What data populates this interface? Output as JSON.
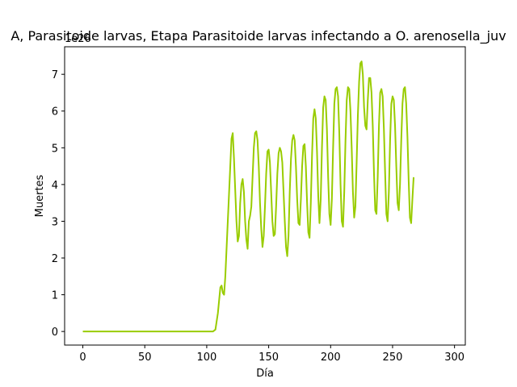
{
  "chart_data": {
    "type": "line",
    "title": "A, Parasitoide larvas, Etapa Parasitoide larvas infectando a O. arenosella_juv",
    "xlabel": "Día",
    "ylabel": "Muertes",
    "y_offset_label": "1e26",
    "xlim": [
      -14.7,
      308.7
    ],
    "ylim": [
      -0.37,
      7.75
    ],
    "x_ticks": [
      0,
      50,
      100,
      150,
      200,
      250,
      300
    ],
    "y_ticks": [
      0,
      1,
      2,
      3,
      4,
      5,
      6,
      7
    ],
    "x_tick_labels": [
      "0",
      "50",
      "100",
      "150",
      "200",
      "250",
      "300"
    ],
    "y_tick_labels": [
      "0",
      "1",
      "2",
      "3",
      "4",
      "5",
      "6",
      "7"
    ],
    "grid": false,
    "legend": "none",
    "series": [
      {
        "color": "#99cc00",
        "points": [
          [
            0,
            0
          ],
          [
            50,
            0
          ],
          [
            100,
            0
          ],
          [
            105,
            0
          ],
          [
            107,
            0.05
          ],
          [
            109,
            0.5
          ],
          [
            111,
            1.2
          ],
          [
            112,
            1.25
          ],
          [
            113,
            1.05
          ],
          [
            114,
            1.0
          ],
          [
            115,
            1.5
          ],
          [
            117,
            3.0
          ],
          [
            119,
            4.5
          ],
          [
            120,
            5.25
          ],
          [
            121,
            5.4
          ],
          [
            122,
            4.7
          ],
          [
            124,
            3.0
          ],
          [
            125,
            2.45
          ],
          [
            126,
            2.6
          ],
          [
            127,
            3.5
          ],
          [
            128,
            4.0
          ],
          [
            129,
            4.15
          ],
          [
            130,
            3.8
          ],
          [
            131,
            3.0
          ],
          [
            132,
            2.5
          ],
          [
            133,
            2.25
          ],
          [
            134,
            3.0
          ],
          [
            135,
            3.15
          ],
          [
            136,
            3.4
          ],
          [
            137,
            4.2
          ],
          [
            138,
            5.0
          ],
          [
            139,
            5.4
          ],
          [
            140,
            5.45
          ],
          [
            141,
            5.2
          ],
          [
            142,
            4.5
          ],
          [
            143,
            3.5
          ],
          [
            144,
            2.8
          ],
          [
            145,
            2.3
          ],
          [
            146,
            2.6
          ],
          [
            147,
            3.4
          ],
          [
            148,
            4.3
          ],
          [
            149,
            4.9
          ],
          [
            150,
            4.95
          ],
          [
            151,
            4.6
          ],
          [
            152,
            3.8
          ],
          [
            153,
            3.0
          ],
          [
            154,
            2.6
          ],
          [
            155,
            2.65
          ],
          [
            156,
            3.4
          ],
          [
            157,
            4.3
          ],
          [
            158,
            4.85
          ],
          [
            159,
            5.0
          ],
          [
            160,
            4.9
          ],
          [
            161,
            4.6
          ],
          [
            162,
            3.8
          ],
          [
            163,
            3.0
          ],
          [
            164,
            2.3
          ],
          [
            165,
            2.05
          ],
          [
            166,
            2.6
          ],
          [
            167,
            3.8
          ],
          [
            168,
            4.7
          ],
          [
            169,
            5.2
          ],
          [
            170,
            5.35
          ],
          [
            171,
            5.2
          ],
          [
            172,
            4.5
          ],
          [
            173,
            3.6
          ],
          [
            174,
            2.95
          ],
          [
            175,
            2.9
          ],
          [
            176,
            3.6
          ],
          [
            177,
            4.5
          ],
          [
            178,
            5.05
          ],
          [
            179,
            5.1
          ],
          [
            180,
            4.5
          ],
          [
            181,
            3.5
          ],
          [
            182,
            2.7
          ],
          [
            183,
            2.55
          ],
          [
            184,
            3.5
          ],
          [
            185,
            4.8
          ],
          [
            186,
            5.8
          ],
          [
            187,
            6.05
          ],
          [
            188,
            5.8
          ],
          [
            189,
            4.9
          ],
          [
            190,
            3.7
          ],
          [
            191,
            2.95
          ],
          [
            192,
            3.6
          ],
          [
            193,
            5.0
          ],
          [
            194,
            6.1
          ],
          [
            195,
            6.4
          ],
          [
            196,
            6.3
          ],
          [
            197,
            5.5
          ],
          [
            198,
            4.2
          ],
          [
            199,
            3.2
          ],
          [
            200,
            2.9
          ],
          [
            201,
            3.6
          ],
          [
            202,
            5.0
          ],
          [
            203,
            6.2
          ],
          [
            204,
            6.6
          ],
          [
            205,
            6.65
          ],
          [
            206,
            6.4
          ],
          [
            207,
            5.4
          ],
          [
            208,
            4.0
          ],
          [
            209,
            3.0
          ],
          [
            210,
            2.85
          ],
          [
            211,
            3.8
          ],
          [
            212,
            5.2
          ],
          [
            213,
            6.3
          ],
          [
            214,
            6.65
          ],
          [
            215,
            6.6
          ],
          [
            216,
            6.0
          ],
          [
            217,
            5.0
          ],
          [
            218,
            3.8
          ],
          [
            219,
            3.1
          ],
          [
            220,
            3.4
          ],
          [
            221,
            4.6
          ],
          [
            222,
            5.9
          ],
          [
            223,
            6.8
          ],
          [
            224,
            7.3
          ],
          [
            225,
            7.35
          ],
          [
            226,
            7.0
          ],
          [
            227,
            6.1
          ],
          [
            228,
            5.6
          ],
          [
            229,
            5.5
          ],
          [
            230,
            6.3
          ],
          [
            231,
            6.9
          ],
          [
            232,
            6.9
          ],
          [
            233,
            6.5
          ],
          [
            234,
            5.6
          ],
          [
            235,
            4.3
          ],
          [
            236,
            3.3
          ],
          [
            237,
            3.2
          ],
          [
            238,
            4.2
          ],
          [
            239,
            5.6
          ],
          [
            240,
            6.5
          ],
          [
            241,
            6.6
          ],
          [
            242,
            6.4
          ],
          [
            243,
            5.5
          ],
          [
            244,
            4.3
          ],
          [
            245,
            3.2
          ],
          [
            246,
            3.0
          ],
          [
            247,
            3.8
          ],
          [
            248,
            5.2
          ],
          [
            249,
            6.2
          ],
          [
            250,
            6.4
          ],
          [
            251,
            6.3
          ],
          [
            252,
            5.6
          ],
          [
            253,
            4.5
          ],
          [
            254,
            3.5
          ],
          [
            255,
            3.3
          ],
          [
            256,
            4.0
          ],
          [
            257,
            5.2
          ],
          [
            258,
            6.2
          ],
          [
            259,
            6.6
          ],
          [
            260,
            6.65
          ],
          [
            261,
            6.2
          ],
          [
            262,
            5.3
          ],
          [
            263,
            4.1
          ],
          [
            264,
            3.1
          ],
          [
            265,
            2.95
          ],
          [
            266,
            3.6
          ],
          [
            267,
            4.2
          ]
        ]
      }
    ]
  }
}
